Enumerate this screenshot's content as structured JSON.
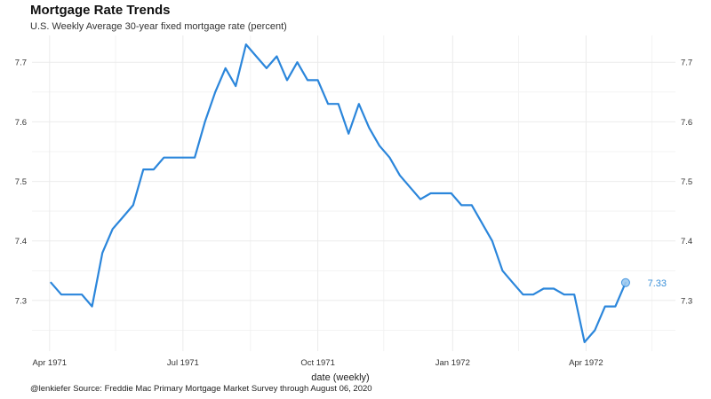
{
  "header": {
    "title": "Mortgage Rate Trends",
    "subtitle": "U.S. Weekly Average 30-year fixed mortgage rate (percent)"
  },
  "footer": {
    "caption": "@lenkiefer Source: Freddie Mac Primary Mortgage Market Survey through August 06, 2020"
  },
  "colors": {
    "line": "#2b86db",
    "grid": "#ebebeb",
    "end_label": "#3a8fd8"
  },
  "chart_data": {
    "type": "line",
    "title": "Mortgage Rate Trends",
    "subtitle": "U.S. Weekly Average 30-year fixed mortgage rate (percent)",
    "xlabel": "date (weekly)",
    "ylabel": "",
    "x_ticks": [
      "Apr 1971",
      "Jul 1971",
      "Oct 1971",
      "Jan 1972",
      "Apr 1972"
    ],
    "x_tick_dates": [
      "1971-04-01",
      "1971-07-01",
      "1971-10-01",
      "1972-01-01",
      "1972-04-01"
    ],
    "xlim": [
      "1971-03-20",
      "1972-06-01"
    ],
    "y_ticks": [
      7.3,
      7.4,
      7.5,
      7.6,
      7.7
    ],
    "ylim": [
      7.215,
      7.745
    ],
    "y_axis_both_sides": true,
    "grid": true,
    "end_label": "7.33",
    "series": [
      {
        "x": [
          "1971-04-02",
          "1971-04-09",
          "1971-04-16",
          "1971-04-23",
          "1971-04-30",
          "1971-05-07",
          "1971-05-14",
          "1971-05-21",
          "1971-05-28",
          "1971-06-04",
          "1971-06-11",
          "1971-06-18",
          "1971-06-25",
          "1971-07-02",
          "1971-07-09",
          "1971-07-16",
          "1971-07-23",
          "1971-07-30",
          "1971-08-06",
          "1971-08-13",
          "1971-08-20",
          "1971-08-27",
          "1971-09-03",
          "1971-09-10",
          "1971-09-17",
          "1971-09-24",
          "1971-10-01",
          "1971-10-08",
          "1971-10-15",
          "1971-10-22",
          "1971-10-29",
          "1971-11-05",
          "1971-11-12",
          "1971-11-19",
          "1971-11-26",
          "1971-12-03",
          "1971-12-10",
          "1971-12-17",
          "1971-12-24",
          "1971-12-31",
          "1972-01-07",
          "1972-01-14",
          "1972-01-21",
          "1972-01-28",
          "1972-02-04",
          "1972-02-11",
          "1972-02-18",
          "1972-02-25",
          "1972-03-03",
          "1972-03-10",
          "1972-03-17",
          "1972-03-24",
          "1972-03-31",
          "1972-04-07",
          "1972-04-14",
          "1972-04-21",
          "1972-04-28"
        ],
        "values": [
          7.33,
          7.31,
          7.31,
          7.31,
          7.29,
          7.38,
          7.42,
          7.44,
          7.46,
          7.52,
          7.52,
          7.54,
          7.54,
          7.54,
          7.54,
          7.6,
          7.65,
          7.69,
          7.66,
          7.73,
          7.71,
          7.69,
          7.71,
          7.67,
          7.7,
          7.67,
          7.67,
          7.63,
          7.63,
          7.58,
          7.63,
          7.59,
          7.56,
          7.54,
          7.51,
          7.49,
          7.47,
          7.48,
          7.48,
          7.48,
          7.46,
          7.46,
          7.43,
          7.4,
          7.35,
          7.33,
          7.31,
          7.31,
          7.32,
          7.32,
          7.31,
          7.31,
          7.23,
          7.25,
          7.29,
          7.29,
          7.33
        ]
      }
    ]
  }
}
